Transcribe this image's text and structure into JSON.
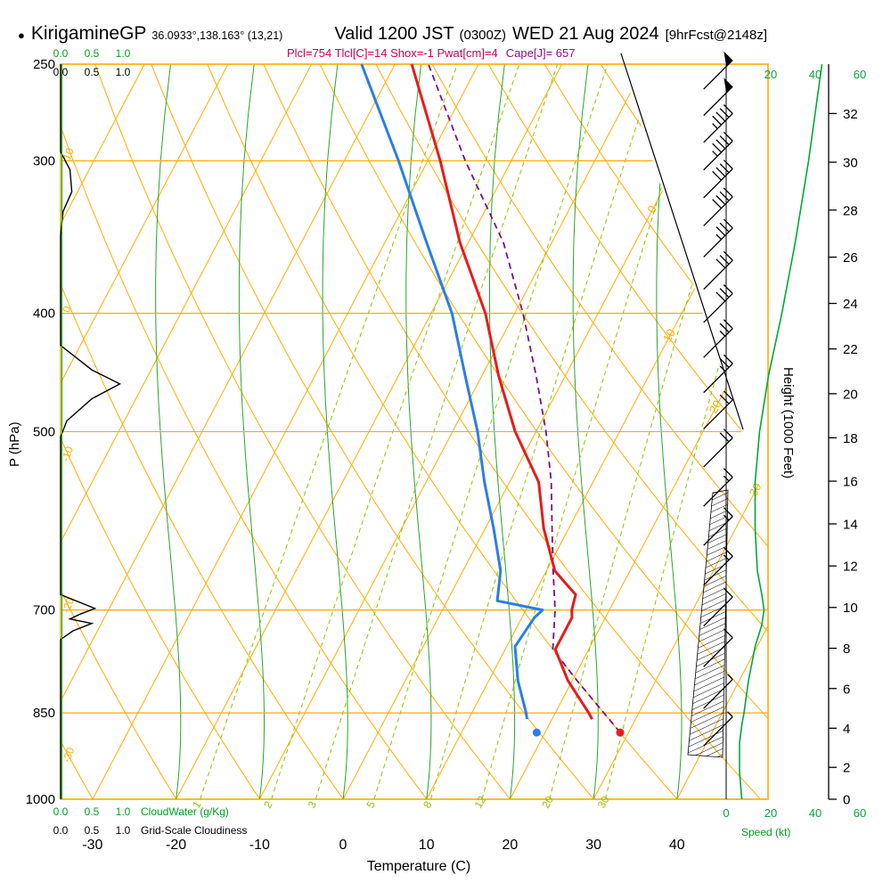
{
  "header": {
    "bullet": "●",
    "station": "KirigamineGP",
    "coords": "36.0933°,138.163° (13,21)",
    "valid": "Valid 1200 JST",
    "valid_z": "(0300Z)",
    "valid_date": "WED 21 Aug 2024",
    "fcst": "[9hrFcst@2148z]"
  },
  "stats": {
    "main": "Plcl=754 Tlcl[C]=14 Shox=-1 Pwat[cm]=4",
    "cape": "Cape[J]= 657"
  },
  "axes": {
    "pressure_label": "P (hPa)",
    "pressure_ticks": [
      "250",
      "300",
      "400",
      "500",
      "700",
      "850",
      "1000"
    ],
    "temp_label": "Temperature (C)",
    "temp_ticks": [
      "-30",
      "-20",
      "-10",
      "0",
      "10",
      "20",
      "30",
      "40"
    ],
    "height_label": "Height (1000 Feet)",
    "height_ticks": [
      "32",
      "30",
      "28",
      "26",
      "24",
      "22",
      "20",
      "18",
      "16",
      "14",
      "12",
      "10",
      "8",
      "6",
      "4",
      "2",
      "0"
    ],
    "speed_label": "Speed (kt)",
    "speed_ticks_top": [
      "20",
      "40",
      "60"
    ],
    "speed_ticks_bottom": [
      "0",
      "20",
      "40",
      "60"
    ],
    "cloud_scale": [
      "0.0",
      "0.5",
      "1.0"
    ],
    "cloudwater_label": "CloudWater (g/Kg)",
    "cloudiness_label": "Grid-Scale Cloudiness"
  },
  "palette": {
    "grid": "#ffac00",
    "moist": "#2aa42a",
    "mixing": "#8cc400",
    "temp": "#e61c1c",
    "dew": "#2a7fe0",
    "parcel": "#7d0f7d",
    "speed": "#00a83c",
    "cloud": "#000000",
    "stats_main": "#cc0055",
    "stats_cape": "#8a0f8a"
  },
  "chart_data": {
    "type": "line",
    "subtype": "skew-t log-p thermodynamic sounding",
    "title": "KirigamineGP Valid 1200 JST (0300Z) WED 21 Aug 2024 [9hrFcst@2148z]",
    "pressure_range_hPa": [
      250,
      1000
    ],
    "temp_axis_range_C": [
      -30,
      40
    ],
    "height_axis_range_kft": [
      0,
      32
    ],
    "speed_axis_range_kt": [
      0,
      60
    ],
    "isobars_hPa": [
      300,
      400,
      500,
      700,
      850
    ],
    "isotherm_step_C": 10,
    "isotherm_labels_right": [
      "0",
      "10",
      "20",
      "30"
    ],
    "dry_adiabat_labels_left": [
      "10",
      "0",
      "-10",
      "-20",
      "-30"
    ],
    "mixing_ratio_g_per_kg": [
      1,
      2,
      3,
      5,
      8,
      12,
      20,
      30
    ],
    "moist_adiabat_start_C": [
      -20,
      -10,
      0,
      10,
      20,
      30,
      40
    ],
    "indices": {
      "Plcl": 754,
      "Tlcl_C": 14,
      "Showalter": -1,
      "Pwat_cm": 4,
      "Cape_J": 657
    },
    "surface": {
      "pressure_hPa": 882,
      "temp_C": 29,
      "dewpoint_C": 19
    },
    "temperature_C": [
      [
        860,
        24.8
      ],
      [
        850,
        24
      ],
      [
        800,
        19.5
      ],
      [
        754,
        16
      ],
      [
        710,
        16
      ],
      [
        700,
        15.5
      ],
      [
        680,
        15
      ],
      [
        665,
        13
      ],
      [
        650,
        11
      ],
      [
        600,
        7
      ],
      [
        550,
        3.5
      ],
      [
        500,
        -2.5
      ],
      [
        450,
        -8
      ],
      [
        400,
        -13.5
      ],
      [
        350,
        -21
      ],
      [
        300,
        -28.5
      ],
      [
        250,
        -38
      ]
    ],
    "dewpoint_C": [
      [
        860,
        17
      ],
      [
        850,
        16.5
      ],
      [
        800,
        13.5
      ],
      [
        750,
        11
      ],
      [
        710,
        11.5
      ],
      [
        700,
        12
      ],
      [
        688,
        6
      ],
      [
        650,
        4.5
      ],
      [
        600,
        1
      ],
      [
        550,
        -3
      ],
      [
        500,
        -7
      ],
      [
        450,
        -12
      ],
      [
        400,
        -17.5
      ],
      [
        350,
        -25
      ],
      [
        300,
        -33.5
      ],
      [
        250,
        -44
      ]
    ],
    "parcel_C": [
      [
        882,
        29
      ],
      [
        800,
        20.6
      ],
      [
        754,
        15.7
      ],
      [
        700,
        13.5
      ],
      [
        650,
        10.8
      ],
      [
        600,
        8
      ],
      [
        550,
        5
      ],
      [
        500,
        1.2
      ],
      [
        450,
        -3.5
      ],
      [
        400,
        -9
      ],
      [
        350,
        -15.8
      ],
      [
        300,
        -25.5
      ],
      [
        250,
        -36
      ]
    ],
    "wind_barbs_p_kt": [
      [
        255,
        50
      ],
      [
        268,
        50
      ],
      [
        282,
        45
      ],
      [
        297,
        45
      ],
      [
        313,
        40
      ],
      [
        330,
        40
      ],
      [
        350,
        35
      ],
      [
        372,
        30
      ],
      [
        396,
        30
      ],
      [
        423,
        25
      ],
      [
        452,
        25
      ],
      [
        484,
        20
      ],
      [
        520,
        20
      ],
      [
        560,
        15
      ],
      [
        603,
        15
      ],
      [
        650,
        15
      ],
      [
        702,
        10
      ],
      [
        758,
        10
      ],
      [
        820,
        5
      ],
      [
        880,
        5
      ]
    ],
    "wind_speed_kt": [
      [
        1000,
        7
      ],
      [
        950,
        6
      ],
      [
        900,
        6
      ],
      [
        870,
        7
      ],
      [
        850,
        8
      ],
      [
        800,
        10
      ],
      [
        750,
        13
      ],
      [
        720,
        16
      ],
      [
        700,
        17
      ],
      [
        680,
        16
      ],
      [
        650,
        14
      ],
      [
        600,
        13
      ],
      [
        550,
        13
      ],
      [
        500,
        15
      ],
      [
        450,
        19
      ],
      [
        400,
        25
      ],
      [
        350,
        31
      ],
      [
        300,
        37
      ],
      [
        250,
        43
      ]
    ],
    "cloudiness_fraction": [
      [
        250,
        0
      ],
      [
        295,
        0
      ],
      [
        305,
        0.15
      ],
      [
        318,
        0.18
      ],
      [
        330,
        0.04
      ],
      [
        345,
        0
      ],
      [
        425,
        0
      ],
      [
        445,
        0.5
      ],
      [
        457,
        0.95
      ],
      [
        470,
        0.5
      ],
      [
        490,
        0.1
      ],
      [
        505,
        0
      ],
      [
        680,
        0
      ],
      [
        698,
        0.55
      ],
      [
        706,
        0.3
      ],
      [
        712,
        0.15
      ],
      [
        718,
        0.5
      ],
      [
        728,
        0.2
      ],
      [
        740,
        0
      ],
      [
        1000,
        0
      ]
    ],
    "hatched_layer_hPa": [
      560,
      900
    ]
  }
}
